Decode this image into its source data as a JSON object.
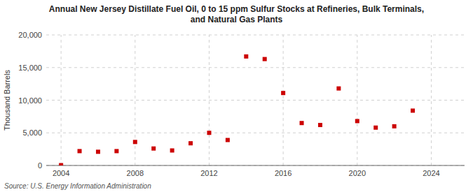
{
  "chart_data": {
    "type": "scatter",
    "title": "Annual New Jersey Distillate Fuel Oil, 0 to 15 ppm Sulfur Stocks at Refineries, Bulk Terminals,\nand Natural Gas Plants",
    "y_label": "Thousand Barrels",
    "source": "Source: U.S. Energy Information Administration",
    "x": [
      2004,
      2005,
      2006,
      2007,
      2008,
      2009,
      2010,
      2011,
      2012,
      2013,
      2014,
      2015,
      2016,
      2017,
      2018,
      2019,
      2020,
      2021,
      2022,
      2023,
      2024
    ],
    "values": [
      50,
      2200,
      2100,
      2200,
      3600,
      2600,
      2300,
      3400,
      5000,
      3900,
      16700,
      16300,
      11100,
      6500,
      6200,
      11800,
      6800,
      5800,
      6000,
      8400,
      null
    ],
    "color": "#cc0000",
    "marker": "square",
    "xlim": [
      2003.2,
      2025.8
    ],
    "xticks": [
      2004,
      2008,
      2012,
      2016,
      2020,
      2024
    ],
    "ylim": [
      0,
      20000
    ],
    "yticks": [
      0,
      {
        "value": 5000,
        "label": "5,000"
      },
      {
        "value": 10000,
        "label": "10,000"
      },
      {
        "value": 15000,
        "label": "15,000"
      },
      {
        "value": 20000,
        "label": "20,000"
      }
    ],
    "grid": true
  }
}
